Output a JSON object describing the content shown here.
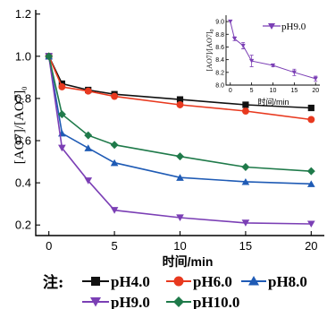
{
  "chart_data": [
    {
      "type": "line",
      "x": [
        0,
        1,
        3,
        5,
        10,
        15,
        20
      ],
      "xlabel": "时间/min",
      "ylabel": "[AO7]/[AO7]0",
      "xlim": [
        -1,
        21
      ],
      "ylim": [
        0.15,
        1.22
      ],
      "xticks": [
        0,
        5,
        10,
        15,
        20
      ],
      "yticks": [
        0.2,
        0.4,
        0.6,
        0.8,
        1.0,
        1.2
      ],
      "ytick_labels": [
        "0.2",
        "0.4",
        "0.6",
        "0.8",
        "1.0",
        "1.2"
      ],
      "series": [
        {
          "name": "pH4.0",
          "color": "#111111",
          "marker": "square",
          "values": [
            1.0,
            0.87,
            0.84,
            0.82,
            0.795,
            0.77,
            0.755
          ]
        },
        {
          "name": "pH6.0",
          "color": "#e8391f",
          "marker": "circle",
          "values": [
            1.0,
            0.855,
            0.835,
            0.81,
            0.77,
            0.74,
            0.7
          ]
        },
        {
          "name": "pH8.0",
          "color": "#1f5bb5",
          "marker": "triangle-up",
          "values": [
            1.0,
            0.635,
            0.565,
            0.495,
            0.425,
            0.405,
            0.395
          ]
        },
        {
          "name": "pH9.0",
          "color": "#7b3fb5",
          "marker": "triangle-down",
          "values": [
            1.0,
            0.565,
            0.41,
            0.27,
            0.235,
            0.21,
            0.205
          ]
        },
        {
          "name": "pH10.0",
          "color": "#1f7a4a",
          "marker": "diamond",
          "values": [
            1.0,
            0.725,
            0.625,
            0.58,
            0.525,
            0.475,
            0.455
          ]
        }
      ],
      "legend_position": "bottom",
      "note_label": "注:"
    },
    {
      "type": "line",
      "x": [
        0,
        1,
        3,
        5,
        10,
        15,
        20
      ],
      "xlabel": "时间/min",
      "ylabel": "[AO7]/[AO7]0",
      "xlim": [
        -1,
        21
      ],
      "ylim": [
        8.0,
        9.1
      ],
      "xticks": [
        0,
        5,
        10,
        15,
        20
      ],
      "yticks": [
        8.0,
        8.2,
        8.4,
        8.6,
        8.8,
        9.0
      ],
      "ytick_labels": [
        "8.0",
        "8.2",
        "8.4",
        "8.6",
        "8.8",
        "9.0"
      ],
      "series": [
        {
          "name": "pH9.0",
          "color": "#7b3fb5",
          "marker": "triangle-down",
          "values": [
            9.0,
            8.73,
            8.62,
            8.38,
            8.31,
            8.2,
            8.1
          ],
          "errors": [
            0.0,
            0.03,
            0.05,
            0.09,
            0.02,
            0.05,
            0.04
          ]
        }
      ],
      "legend_position": "top-right"
    }
  ]
}
